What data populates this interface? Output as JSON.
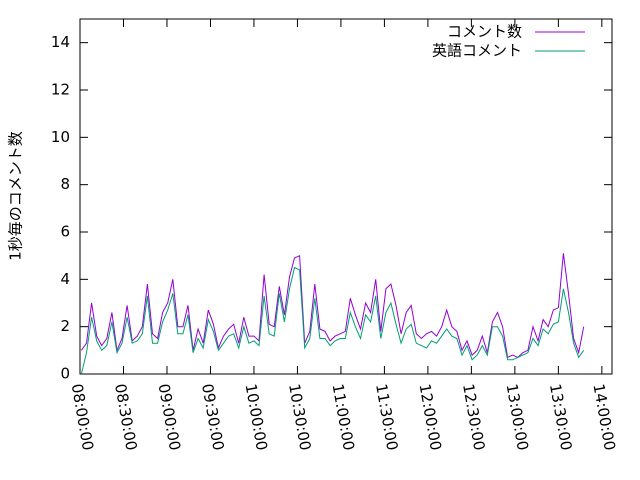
{
  "chart_data": {
    "type": "line",
    "y_label": "1秒毎のコメント数",
    "x": [
      "08:01:00",
      "08:04:30",
      "08:08:00",
      "08:11:30",
      "08:15:00",
      "08:18:30",
      "08:22:00",
      "08:25:30",
      "08:29:00",
      "08:32:30",
      "08:36:00",
      "08:39:30",
      "08:43:00",
      "08:46:30",
      "08:50:00",
      "08:53:30",
      "08:57:00",
      "09:00:30",
      "09:04:00",
      "09:07:30",
      "09:11:00",
      "09:14:30",
      "09:18:00",
      "09:21:30",
      "09:25:00",
      "09:28:30",
      "09:32:00",
      "09:35:30",
      "09:39:00",
      "09:42:30",
      "09:46:00",
      "09:49:30",
      "09:53:00",
      "09:56:30",
      "10:00:00",
      "10:03:30",
      "10:07:00",
      "10:10:30",
      "10:14:00",
      "10:17:30",
      "10:21:00",
      "10:24:30",
      "10:28:00",
      "10:31:30",
      "10:35:00",
      "10:38:30",
      "10:42:00",
      "10:45:30",
      "10:49:00",
      "10:52:30",
      "10:56:00",
      "10:59:30",
      "11:03:00",
      "11:06:30",
      "11:10:00",
      "11:13:30",
      "11:17:00",
      "11:20:30",
      "11:24:00",
      "11:27:30",
      "11:31:00",
      "11:34:30",
      "11:38:00",
      "11:41:30",
      "11:45:00",
      "11:48:30",
      "11:52:00",
      "11:55:30",
      "11:59:00",
      "12:02:30",
      "12:06:00",
      "12:09:30",
      "12:13:00",
      "12:16:30",
      "12:20:00",
      "12:23:30",
      "12:27:00",
      "12:30:30",
      "12:34:00",
      "12:37:30",
      "12:41:00",
      "12:44:30",
      "12:48:00",
      "12:51:30",
      "12:55:00",
      "12:58:30",
      "13:02:00",
      "13:05:30",
      "13:09:00",
      "13:12:30",
      "13:16:00",
      "13:19:30",
      "13:23:00",
      "13:26:30",
      "13:30:00",
      "13:33:30",
      "13:37:00",
      "13:40:30",
      "13:44:00",
      "13:47:30"
    ],
    "series": [
      {
        "name": "コメント数",
        "color": "#9400d3",
        "values": [
          1.0,
          1.3,
          3.0,
          1.6,
          1.2,
          1.5,
          2.6,
          1.0,
          1.5,
          2.9,
          1.4,
          1.6,
          2.0,
          3.8,
          1.7,
          1.5,
          2.6,
          3.0,
          4.0,
          2.0,
          2.0,
          2.9,
          1.0,
          1.9,
          1.3,
          2.7,
          2.1,
          1.1,
          1.6,
          1.9,
          2.1,
          1.3,
          2.4,
          1.6,
          1.6,
          1.4,
          4.2,
          2.1,
          2.0,
          3.7,
          2.5,
          4.1,
          4.9,
          5.0,
          1.3,
          1.8,
          3.8,
          1.9,
          1.8,
          1.4,
          1.6,
          1.7,
          1.8,
          3.2,
          2.5,
          1.9,
          3.0,
          2.6,
          4.0,
          1.8,
          3.6,
          3.8,
          2.9,
          1.7,
          2.6,
          2.9,
          1.7,
          1.5,
          1.7,
          1.8,
          1.6,
          2.0,
          2.7,
          2.0,
          1.8,
          1.0,
          1.4,
          0.8,
          1.0,
          1.6,
          0.9,
          2.2,
          2.6,
          2.0,
          0.7,
          0.8,
          0.7,
          0.9,
          1.0,
          2.0,
          1.4,
          2.3,
          2.0,
          2.7,
          2.8,
          5.1,
          3.4,
          1.5,
          0.9,
          2.0
        ]
      },
      {
        "name": "英語コメント",
        "color": "#009e73",
        "values": [
          0.0,
          0.9,
          2.4,
          1.4,
          1.0,
          1.2,
          2.2,
          0.9,
          1.3,
          2.4,
          1.3,
          1.4,
          1.7,
          3.3,
          1.3,
          1.3,
          2.2,
          2.7,
          3.4,
          1.7,
          1.7,
          2.5,
          0.9,
          1.5,
          1.1,
          2.3,
          1.8,
          1.0,
          1.3,
          1.6,
          1.7,
          1.1,
          2.0,
          1.3,
          1.4,
          1.2,
          3.3,
          1.7,
          1.6,
          3.4,
          2.2,
          3.6,
          4.5,
          4.4,
          1.1,
          1.5,
          3.2,
          1.5,
          1.5,
          1.2,
          1.4,
          1.5,
          1.5,
          2.6,
          2.0,
          1.5,
          2.5,
          2.2,
          3.3,
          1.5,
          2.6,
          3.0,
          2.1,
          1.3,
          1.9,
          2.1,
          1.3,
          1.2,
          1.1,
          1.4,
          1.3,
          1.6,
          1.9,
          1.6,
          1.5,
          0.8,
          1.2,
          0.6,
          0.8,
          1.2,
          0.8,
          2.0,
          2.0,
          1.6,
          0.6,
          0.6,
          0.7,
          0.8,
          0.9,
          1.5,
          1.2,
          1.9,
          1.7,
          2.1,
          2.2,
          3.6,
          2.6,
          1.3,
          0.7,
          1.0
        ]
      }
    ],
    "xlim": [
      "08:00:00",
      "14:07:00"
    ],
    "xticks": [
      "08:00:00",
      "08:30:00",
      "09:00:00",
      "09:30:00",
      "10:00:00",
      "10:30:00",
      "11:00:00",
      "11:30:00",
      "12:00:00",
      "12:30:00",
      "13:00:00",
      "13:30:00",
      "14:00:00"
    ],
    "ylim": [
      0,
      15
    ],
    "yticks": [
      0,
      2,
      4,
      6,
      8,
      10,
      12,
      14
    ],
    "grid": false,
    "legend": "top-right"
  }
}
